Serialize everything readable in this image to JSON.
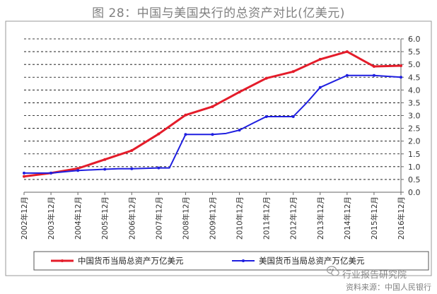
{
  "title": "图 28：中国与美国央行的总资产对比(亿美元)",
  "watermark": "行业报告研究院",
  "source": "资料来源：中国人民银行",
  "colors": {
    "china": "#e41c2a",
    "us": "#1f1fe0",
    "grid": "#000000"
  },
  "chart_data": {
    "type": "line",
    "categories": [
      "2002年12月",
      "2003年12月",
      "2004年12月",
      "2005年12月",
      "2006年12月",
      "2007年12月",
      "2008年12月",
      "2009年12月",
      "2010年12月",
      "2011年12月",
      "2012年12月",
      "2013年12月",
      "2014年12月",
      "2015年12月",
      "2016年12月"
    ],
    "x_fraction": [
      0.0,
      0.0833,
      0.1667,
      0.25,
      0.3333,
      0.4167,
      0.5,
      0.5833,
      0.6667,
      0.75,
      0.8333,
      0.9167,
      1.0,
      1.0833,
      1.1667,
      1.25,
      1.3333,
      1.4167,
      1.5,
      1.5833,
      1.6667,
      1.75,
      1.8333,
      1.9167,
      2.0,
      2.0833,
      2.1667,
      2.25,
      2.3333,
      2.4167,
      2.5,
      2.5833,
      2.6667,
      2.75,
      2.8333,
      2.9167,
      3.0,
      3.0833,
      3.1667,
      3.25,
      3.3333,
      3.4167,
      3.5,
      3.5833,
      3.6667,
      3.75,
      3.8333,
      3.9167,
      4.0,
      4.0833,
      4.1667,
      4.25,
      4.3333,
      4.4167,
      4.5,
      4.5833,
      4.6667,
      4.75,
      4.8333,
      4.9167,
      5.0,
      5.0833,
      5.1667,
      5.25,
      5.3333,
      5.4167,
      5.5,
      5.5833,
      5.6667,
      5.75,
      5.8333,
      5.9167,
      6.0,
      6.0833,
      6.1667,
      6.25,
      6.3333,
      6.4167,
      6.5,
      6.5833,
      6.6667,
      6.75,
      6.8333,
      6.9167,
      7.0,
      7.0833,
      7.1667,
      7.25,
      7.3333,
      7.4167,
      7.5,
      7.5833,
      7.6667,
      7.75,
      7.8333,
      7.9167,
      8.0,
      8.0833,
      8.1667,
      8.25,
      8.3333,
      8.4167,
      8.5,
      8.5833,
      8.6667,
      8.75,
      8.8333,
      8.9167,
      9.0,
      9.0833,
      9.1667,
      9.25,
      9.3333,
      9.4167,
      9.5,
      9.5833,
      9.6667,
      9.75,
      9.8333,
      9.9167,
      10.0,
      10.0833,
      10.1667,
      10.25,
      10.3333,
      10.4167,
      10.5,
      10.5833,
      10.6667,
      10.75,
      10.8333,
      10.9167,
      11.0,
      11.0833,
      11.1667,
      11.25,
      11.3333,
      11.4167,
      11.5,
      11.5833,
      11.6667,
      11.75,
      11.8333,
      11.9167,
      12.0,
      12.0833,
      12.1667,
      12.25,
      12.3333,
      12.4167,
      12.5,
      12.5833,
      12.6667,
      12.75,
      12.8333,
      12.9167,
      13.0,
      13.0833,
      13.1667,
      13.25,
      13.3333,
      13.4167,
      13.5,
      13.5833,
      13.6667,
      13.75,
      13.8333,
      13.9167,
      14.0
    ],
    "series": [
      {
        "name": "中国货币当局总资产万亿美元",
        "color": "#e41c2a",
        "x": [
          0,
          1,
          2,
          3,
          4,
          5,
          6,
          7,
          8,
          9,
          10,
          11,
          12,
          13,
          14
        ],
        "values": [
          0.62,
          0.75,
          0.93,
          1.28,
          1.63,
          2.28,
          3.02,
          3.35,
          3.92,
          4.46,
          4.72,
          5.2,
          5.5,
          4.92,
          4.95
        ]
      },
      {
        "name": "美国货币当局总资产万亿美元",
        "color": "#1f1fe0",
        "x": [
          0,
          1,
          2,
          3,
          3.5,
          4,
          5,
          5.4,
          6,
          7,
          7.5,
          8,
          8.5,
          9,
          9.5,
          10,
          10.5,
          11,
          12,
          13,
          14
        ],
        "values": [
          0.75,
          0.75,
          0.85,
          0.9,
          0.92,
          0.92,
          0.95,
          0.95,
          2.26,
          2.26,
          2.3,
          2.43,
          2.7,
          2.96,
          2.96,
          2.96,
          3.5,
          4.1,
          4.57,
          4.57,
          4.5
        ]
      }
    ],
    "ylim": [
      0,
      6
    ],
    "yticks": [
      "0.0",
      "0.5",
      "1.0",
      "1.5",
      "2.0",
      "2.5",
      "3.0",
      "3.5",
      "4.0",
      "4.5",
      "5.0",
      "5.5",
      "6.0"
    ],
    "y_axis_side": "right",
    "grid": "horizontal-dashed",
    "legend_position": "bottom"
  }
}
